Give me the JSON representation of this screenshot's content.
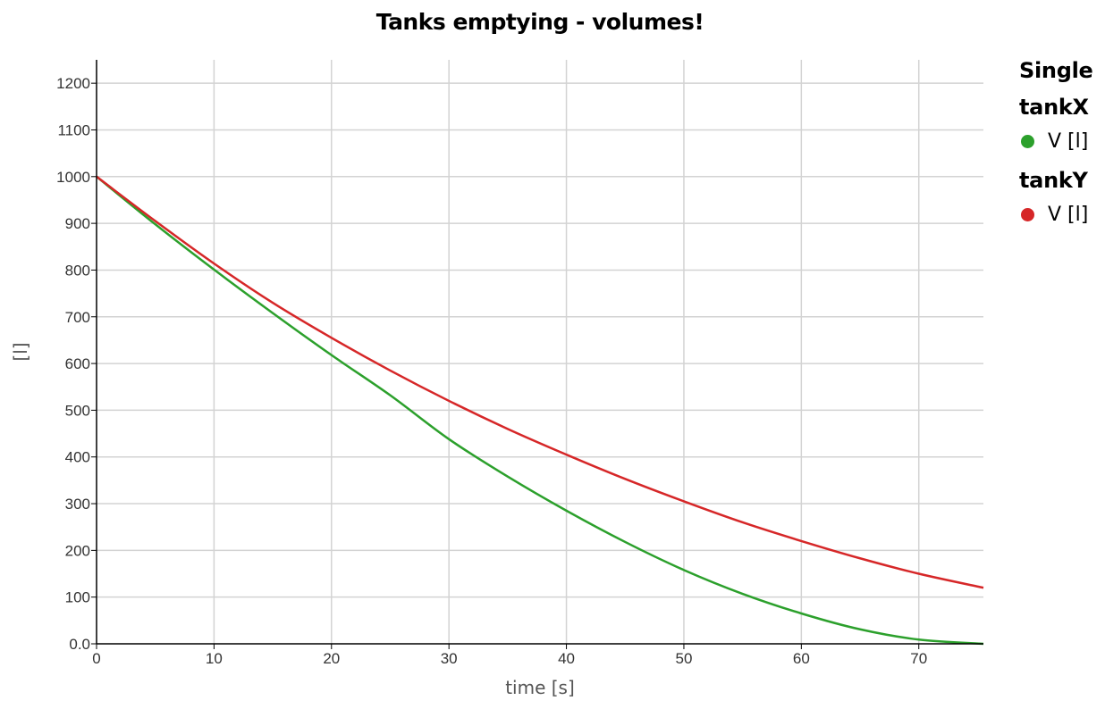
{
  "chart_data": {
    "type": "line",
    "title": "Tanks emptying - volumes!",
    "xlabel": "time [s]",
    "ylabel": "[l]",
    "xlim": [
      0,
      75.5
    ],
    "ylim": [
      0,
      1250
    ],
    "x_ticks": [
      0,
      10,
      20,
      30,
      40,
      50,
      60,
      70
    ],
    "x_tick_labels": [
      "0",
      "10",
      "20",
      "30",
      "40",
      "50",
      "60",
      "70"
    ],
    "y_ticks": [
      0,
      100,
      200,
      300,
      400,
      500,
      600,
      700,
      800,
      900,
      1000,
      1100,
      1200
    ],
    "y_tick_labels": [
      "0.0",
      "100",
      "200",
      "300",
      "400",
      "500",
      "600",
      "700",
      "800",
      "900",
      "1000",
      "1100",
      "1200"
    ],
    "grid": true,
    "legend_position": "right",
    "legend_heading": "Single",
    "series": [
      {
        "group": "tankX",
        "name": "V [l]",
        "color": "#2ca02c",
        "x": [
          0,
          5,
          10,
          15,
          20,
          25,
          30,
          35,
          40,
          45,
          50,
          55,
          60,
          65,
          70,
          75.5
        ],
        "y": [
          1000,
          898,
          801,
          708,
          618,
          532,
          438,
          358,
          285,
          218,
          158,
          107,
          65,
          31,
          9,
          0
        ]
      },
      {
        "group": "tankY",
        "name": "V [l]",
        "color": "#d62728",
        "x": [
          0,
          5,
          10,
          15,
          20,
          25,
          30,
          35,
          40,
          45,
          50,
          55,
          60,
          65,
          70,
          75.5
        ],
        "y": [
          1000,
          905,
          814,
          730,
          655,
          585,
          520,
          460,
          405,
          353,
          305,
          260,
          220,
          183,
          150,
          120
        ]
      }
    ]
  }
}
